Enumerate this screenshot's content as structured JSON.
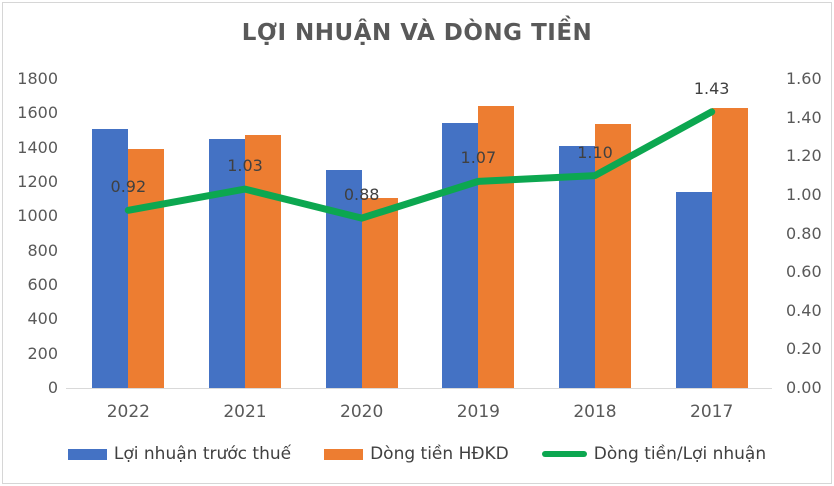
{
  "chart_data": {
    "type": "combo",
    "title": "LỢI NHUẬN VÀ DÒNG TIỀN",
    "categories": [
      "2022",
      "2021",
      "2020",
      "2019",
      "2018",
      "2017"
    ],
    "series": [
      {
        "name": "Lợi nhuận trước thuế",
        "type": "bar",
        "axis": "left",
        "color": "#4472C4",
        "values": [
          1510,
          1450,
          1270,
          1545,
          1410,
          1140
        ]
      },
      {
        "name": "Dòng tiền HĐKD",
        "type": "bar",
        "axis": "left",
        "color": "#ED7D31",
        "values": [
          1390,
          1475,
          1105,
          1645,
          1540,
          1630
        ]
      },
      {
        "name": "Dòng tiền/Lợi nhuận",
        "type": "line",
        "axis": "right",
        "color": "#0CA750",
        "values": [
          0.92,
          1.03,
          0.88,
          1.07,
          1.1,
          1.43
        ],
        "data_labels": [
          "0.92",
          "1.03",
          "0.88",
          "1.07",
          "1.10",
          "1.43"
        ]
      }
    ],
    "left_axis": {
      "min": 0,
      "max": 1800,
      "step": 200,
      "ticks": [
        "1800",
        "1600",
        "1400",
        "1200",
        "1000",
        "800",
        "600",
        "400",
        "200",
        "0"
      ]
    },
    "right_axis": {
      "min": 0,
      "max": 1.6,
      "step": 0.2,
      "ticks": [
        "1.60",
        "1.40",
        "1.20",
        "1.00",
        "0.80",
        "0.60",
        "0.40",
        "0.20",
        "0.00"
      ]
    },
    "legend_position": "bottom",
    "grid": false,
    "colors": {
      "title": "#595959",
      "axis_labels": "#595959",
      "data_labels": "#404040",
      "axis_line": "#D9D9D9",
      "border": "#D6D6D6",
      "background": "#FFFFFF"
    }
  }
}
